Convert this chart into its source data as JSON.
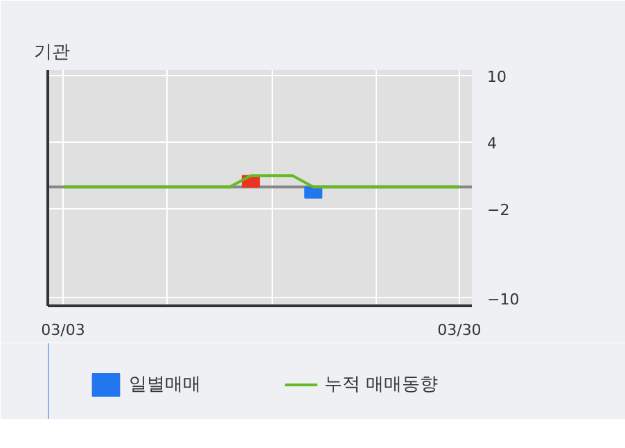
{
  "chart_data": {
    "type": "bar",
    "title": "기관",
    "categories": [
      "03/03",
      null,
      null,
      null,
      null,
      null,
      null,
      null,
      null,
      null,
      null,
      null,
      null,
      null,
      null,
      null,
      null,
      null,
      null,
      "03/30"
    ],
    "series": [
      {
        "name": "일별매매",
        "colors": [
          null,
          null,
          null,
          null,
          null,
          null,
          null,
          null,
          null,
          "#ee3322",
          null,
          null,
          "#2277ee",
          null,
          null,
          null,
          null,
          null,
          null,
          null
        ],
        "values": [
          null,
          null,
          null,
          null,
          null,
          null,
          null,
          null,
          null,
          1,
          null,
          null,
          -1,
          null,
          null,
          null,
          null,
          null,
          null,
          null
        ]
      },
      {
        "name": "누적 매매동향",
        "type": "line",
        "color": "#66bb22",
        "values": [
          0,
          0,
          0,
          0,
          0,
          0,
          0,
          0,
          0,
          1,
          1,
          1,
          0,
          0,
          0,
          0,
          0,
          0,
          0,
          0
        ]
      }
    ],
    "ylim": [
      -10.7,
      10.5
    ],
    "yticks": [
      10,
      4,
      -2,
      -10
    ],
    "ref_lines": [
      {
        "axis": "y",
        "value": 0,
        "color": "#888888"
      }
    ],
    "grid": true,
    "legend": "bottom"
  }
}
